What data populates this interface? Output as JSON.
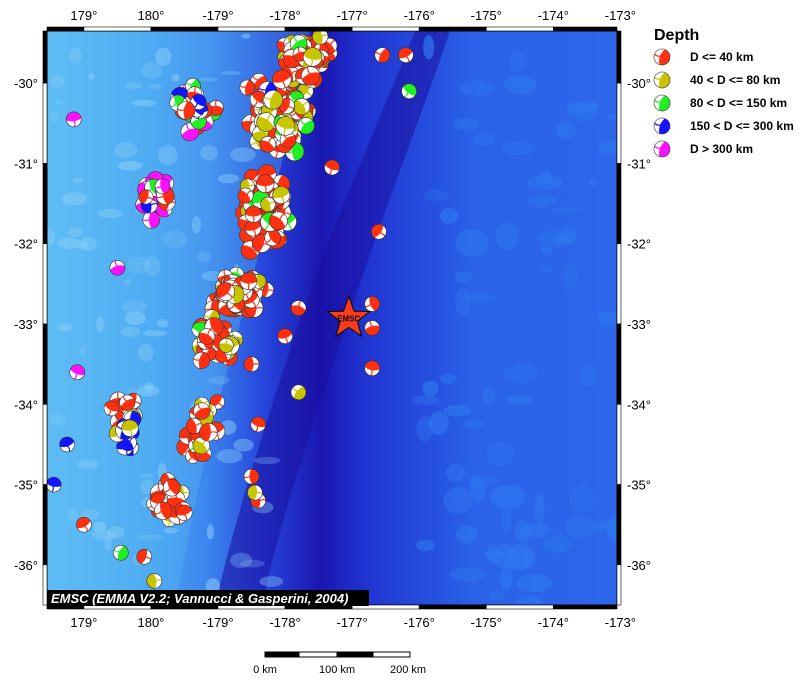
{
  "map": {
    "lon_ticks": [
      {
        "value": 179,
        "label": "179°"
      },
      {
        "value": 180,
        "label": "180°"
      },
      {
        "value": 181,
        "label": "-179°"
      },
      {
        "value": 182,
        "label": "-178°"
      },
      {
        "value": 183,
        "label": "-177°"
      },
      {
        "value": 184,
        "label": "-176°"
      },
      {
        "value": 185,
        "label": "-175°"
      },
      {
        "value": 186,
        "label": "-174°"
      },
      {
        "value": 187,
        "label": "-173°"
      }
    ],
    "lat_ticks": [
      {
        "value": -30,
        "label": "-30°"
      },
      {
        "value": -31,
        "label": "-31°"
      },
      {
        "value": -32,
        "label": "-32°"
      },
      {
        "value": -33,
        "label": "-33°"
      },
      {
        "value": -34,
        "label": "-34°"
      },
      {
        "value": -35,
        "label": "-35°"
      },
      {
        "value": -36,
        "label": "-36°"
      }
    ],
    "lon_range": [
      178.45,
      186.95
    ],
    "lat_range": [
      -36.5,
      -29.35
    ],
    "colors": {
      "ocean_deep": "#1432d8",
      "ocean_mid": "#2f78f0",
      "ocean_shallow": "#58b6f4",
      "trench": "#1c0fa0"
    },
    "epicenter": {
      "lon": 182.95,
      "lat": -32.93,
      "label": "EMSC",
      "color": "#ff3a1a"
    },
    "credit": "EMSC (EMMA V2.2; Vannucci & Gasperini, 2004)"
  },
  "legend": {
    "title": "Depth",
    "items": [
      {
        "label": "D <= 40 km",
        "color": "#ff3010"
      },
      {
        "label": "40 < D <= 80 km",
        "color": "#c8c400"
      },
      {
        "label": "80 < D <= 150 km",
        "color": "#20f020"
      },
      {
        "label": "150 < D <= 300 km",
        "color": "#1414ff"
      },
      {
        "label": "D > 300 km",
        "color": "#ff10ff"
      }
    ]
  },
  "scale_bar": {
    "labels": [
      "0 km",
      "100 km",
      "200 km"
    ]
  },
  "events": {
    "clusters": [
      {
        "lon": 181.9,
        "lat": -30.4,
        "spread_lon": 0.55,
        "spread_lat": 0.55,
        "count": 120,
        "mix": [
          0.55,
          0.35,
          0.07,
          0.03,
          0
        ]
      },
      {
        "lon": 182.3,
        "lat": -29.7,
        "spread_lon": 0.45,
        "spread_lat": 0.35,
        "count": 70,
        "mix": [
          0.6,
          0.35,
          0.05,
          0,
          0
        ]
      },
      {
        "lon": 181.7,
        "lat": -31.6,
        "spread_lon": 0.45,
        "spread_lat": 0.6,
        "count": 80,
        "mix": [
          0.6,
          0.3,
          0.1,
          0,
          0
        ]
      },
      {
        "lon": 181.3,
        "lat": -32.6,
        "spread_lon": 0.5,
        "spread_lat": 0.4,
        "count": 80,
        "mix": [
          0.6,
          0.3,
          0.1,
          0,
          0
        ]
      },
      {
        "lon": 180.9,
        "lat": -33.2,
        "spread_lon": 0.4,
        "spread_lat": 0.35,
        "count": 40,
        "mix": [
          0.6,
          0.3,
          0.1,
          0,
          0
        ]
      },
      {
        "lon": 180.7,
        "lat": -34.3,
        "spread_lon": 0.35,
        "spread_lat": 0.5,
        "count": 25,
        "mix": [
          0.75,
          0.2,
          0.05,
          0,
          0
        ]
      },
      {
        "lon": 180.2,
        "lat": -35.2,
        "spread_lon": 0.4,
        "spread_lat": 0.45,
        "count": 25,
        "mix": [
          0.7,
          0.25,
          0.05,
          0,
          0
        ]
      },
      {
        "lon": 180.7,
        "lat": -30.3,
        "spread_lon": 0.45,
        "spread_lat": 0.4,
        "count": 25,
        "mix": [
          0.2,
          0.1,
          0.2,
          0.2,
          0.3
        ]
      },
      {
        "lon": 180.1,
        "lat": -31.4,
        "spread_lon": 0.3,
        "spread_lat": 0.4,
        "count": 30,
        "mix": [
          0.05,
          0.05,
          0.05,
          0.1,
          0.75
        ]
      },
      {
        "lon": 179.6,
        "lat": -34.2,
        "spread_lon": 0.3,
        "spread_lat": 0.45,
        "count": 18,
        "mix": [
          0.3,
          0.15,
          0.1,
          0.45,
          0
        ]
      }
    ],
    "singles": [
      {
        "lon": 182.7,
        "lat": -31.05,
        "c": 0
      },
      {
        "lon": 183.4,
        "lat": -31.85,
        "c": 0
      },
      {
        "lon": 183.3,
        "lat": -32.75,
        "c": 0
      },
      {
        "lon": 183.3,
        "lat": -33.05,
        "c": 0
      },
      {
        "lon": 183.3,
        "lat": -33.55,
        "c": 0
      },
      {
        "lon": 182.2,
        "lat": -32.8,
        "c": 0
      },
      {
        "lon": 182.0,
        "lat": -33.15,
        "c": 0
      },
      {
        "lon": 181.5,
        "lat": -33.5,
        "c": 0
      },
      {
        "lon": 182.2,
        "lat": -33.85,
        "c": 1
      },
      {
        "lon": 181.6,
        "lat": -34.25,
        "c": 0
      },
      {
        "lon": 181.5,
        "lat": -34.9,
        "c": 0
      },
      {
        "lon": 181.6,
        "lat": -35.2,
        "c": 0
      },
      {
        "lon": 181.55,
        "lat": -35.1,
        "c": 1
      },
      {
        "lon": 183.8,
        "lat": -29.65,
        "c": 0
      },
      {
        "lon": 183.85,
        "lat": -30.1,
        "c": 2
      },
      {
        "lon": 183.45,
        "lat": -29.65,
        "c": 0
      },
      {
        "lon": 178.85,
        "lat": -30.45,
        "c": 4
      },
      {
        "lon": 178.55,
        "lat": -35.0,
        "c": 3
      },
      {
        "lon": 179.0,
        "lat": -35.5,
        "c": 0
      },
      {
        "lon": 179.55,
        "lat": -35.85,
        "c": 2
      },
      {
        "lon": 180.05,
        "lat": -36.2,
        "c": 1
      },
      {
        "lon": 179.9,
        "lat": -35.9,
        "c": 0
      },
      {
        "lon": 179.5,
        "lat": -32.3,
        "c": 4
      },
      {
        "lon": 178.75,
        "lat": -34.5,
        "c": 3
      },
      {
        "lon": 178.9,
        "lat": -33.6,
        "c": 4
      }
    ]
  }
}
